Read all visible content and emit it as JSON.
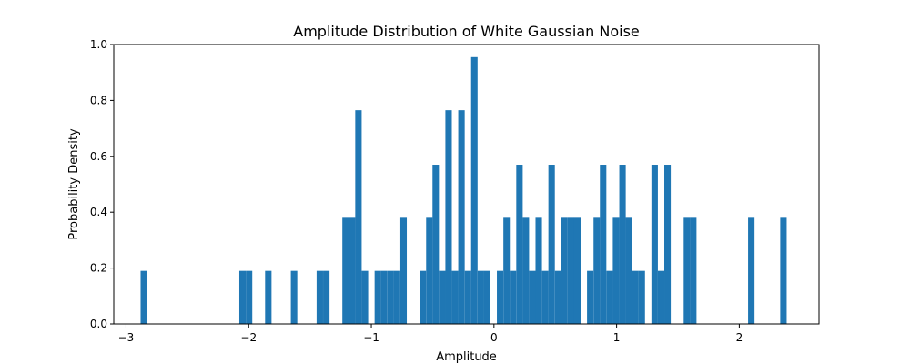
{
  "chart_data": {
    "type": "bar",
    "title": "Amplitude Distribution of White Gaussian Noise",
    "xlabel": "Amplitude",
    "ylabel": "Probability Density",
    "xlim": [
      -3.1,
      2.65
    ],
    "ylim": [
      0,
      1.0
    ],
    "grid": false,
    "color": "#1f77b4",
    "bin_width": 0.0525,
    "xticks": [
      -3,
      -2,
      -1,
      0,
      1,
      2
    ],
    "xtick_labels": [
      "−3",
      "−2",
      "−1",
      "0",
      "1",
      "2"
    ],
    "yticks": [
      0.0,
      0.2,
      0.4,
      0.6,
      0.8,
      1.0
    ],
    "ytick_labels": [
      "0.0",
      "0.2",
      "0.4",
      "0.6",
      "0.8",
      "1.0"
    ],
    "bins": [
      {
        "x": -2.855,
        "value": 0.19
      },
      {
        "x": -2.05,
        "value": 0.19
      },
      {
        "x": -1.997,
        "value": 0.19
      },
      {
        "x": -1.84,
        "value": 0.19
      },
      {
        "x": -1.63,
        "value": 0.19
      },
      {
        "x": -1.42,
        "value": 0.19
      },
      {
        "x": -1.367,
        "value": 0.19
      },
      {
        "x": -1.21,
        "value": 0.38
      },
      {
        "x": -1.157,
        "value": 0.38
      },
      {
        "x": -1.105,
        "value": 0.765
      },
      {
        "x": -1.052,
        "value": 0.19
      },
      {
        "x": -0.947,
        "value": 0.19
      },
      {
        "x": -0.895,
        "value": 0.19
      },
      {
        "x": -0.842,
        "value": 0.19
      },
      {
        "x": -0.79,
        "value": 0.19
      },
      {
        "x": -0.737,
        "value": 0.38
      },
      {
        "x": -0.58,
        "value": 0.19
      },
      {
        "x": -0.527,
        "value": 0.38
      },
      {
        "x": -0.475,
        "value": 0.57
      },
      {
        "x": -0.422,
        "value": 0.19
      },
      {
        "x": -0.37,
        "value": 0.765
      },
      {
        "x": -0.317,
        "value": 0.19
      },
      {
        "x": -0.265,
        "value": 0.765
      },
      {
        "x": -0.212,
        "value": 0.19
      },
      {
        "x": -0.16,
        "value": 0.955
      },
      {
        "x": -0.107,
        "value": 0.19
      },
      {
        "x": -0.055,
        "value": 0.19
      },
      {
        "x": 0.05,
        "value": 0.19
      },
      {
        "x": 0.103,
        "value": 0.38
      },
      {
        "x": 0.155,
        "value": 0.19
      },
      {
        "x": 0.208,
        "value": 0.57
      },
      {
        "x": 0.26,
        "value": 0.38
      },
      {
        "x": 0.313,
        "value": 0.19
      },
      {
        "x": 0.365,
        "value": 0.38
      },
      {
        "x": 0.418,
        "value": 0.19
      },
      {
        "x": 0.47,
        "value": 0.57
      },
      {
        "x": 0.523,
        "value": 0.19
      },
      {
        "x": 0.575,
        "value": 0.38
      },
      {
        "x": 0.628,
        "value": 0.38
      },
      {
        "x": 0.68,
        "value": 0.38
      },
      {
        "x": 0.785,
        "value": 0.19
      },
      {
        "x": 0.838,
        "value": 0.38
      },
      {
        "x": 0.89,
        "value": 0.57
      },
      {
        "x": 0.943,
        "value": 0.19
      },
      {
        "x": 0.995,
        "value": 0.38
      },
      {
        "x": 1.048,
        "value": 0.57
      },
      {
        "x": 1.1,
        "value": 0.38
      },
      {
        "x": 1.153,
        "value": 0.19
      },
      {
        "x": 1.205,
        "value": 0.19
      },
      {
        "x": 1.31,
        "value": 0.57
      },
      {
        "x": 1.363,
        "value": 0.19
      },
      {
        "x": 1.415,
        "value": 0.57
      },
      {
        "x": 1.573,
        "value": 0.38
      },
      {
        "x": 1.625,
        "value": 0.38
      },
      {
        "x": 2.098,
        "value": 0.38
      },
      {
        "x": 2.36,
        "value": 0.38
      }
    ]
  }
}
